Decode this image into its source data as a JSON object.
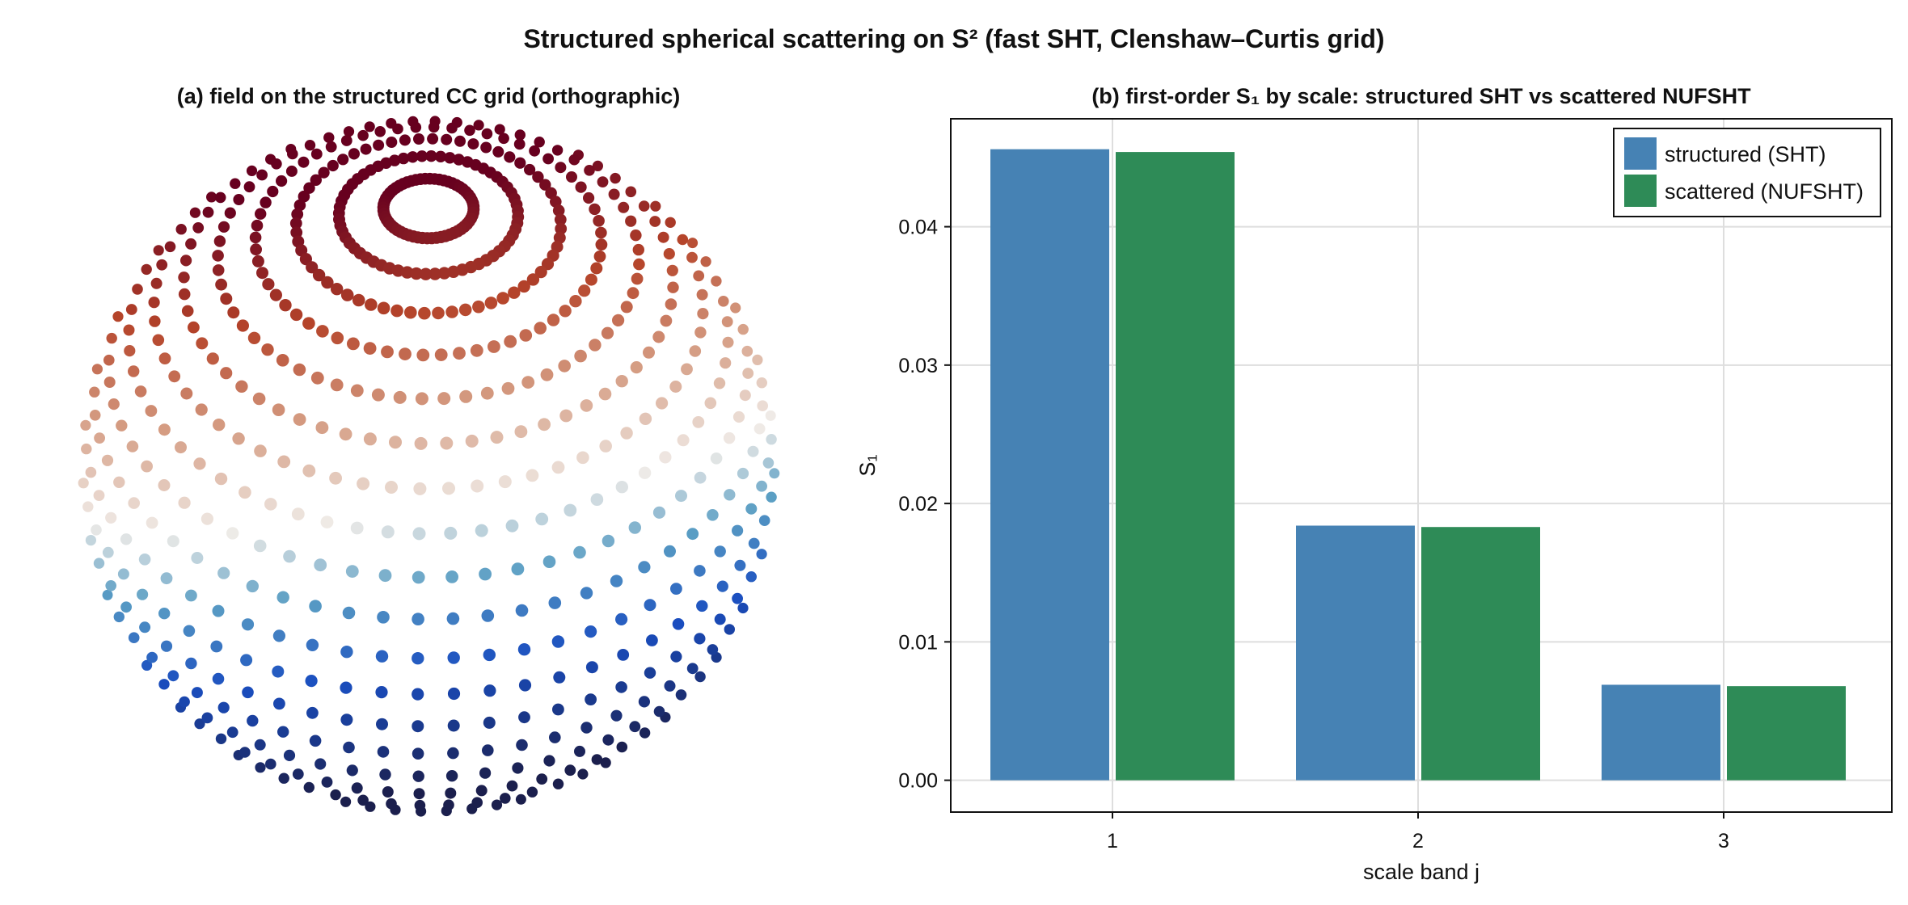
{
  "figure": {
    "title": "Structured spherical scattering on S² (fast SHT, Clenshaw–Curtis grid)"
  },
  "panel_a": {
    "title": "(a) field on the structured CC grid (orthographic)",
    "colors": {
      "high": "#67001f",
      "mid": "#f0ece8",
      "low": "#1b1f4d"
    }
  },
  "chart_data": {
    "type": "bar",
    "title": "(b) first-order S₁ by scale: structured SHT vs scattered NUFSHT",
    "xlabel": "scale band j",
    "ylabel": "S₁",
    "categories": [
      "1",
      "2",
      "3"
    ],
    "series": [
      {
        "name": "structured (SHT)",
        "color": "#4682b4",
        "values": [
          0.0456,
          0.0184,
          0.0069
        ]
      },
      {
        "name": "scattered (NUFSHT)",
        "color": "#2e8b57",
        "values": [
          0.0454,
          0.0183,
          0.0068
        ]
      }
    ],
    "ylim": [
      -0.0023,
      0.0478
    ],
    "yticks": [
      "0.00",
      "0.01",
      "0.02",
      "0.03",
      "0.04"
    ],
    "ytick_values": [
      0,
      0.01,
      0.02,
      0.03,
      0.04
    ],
    "grid": true,
    "legend": "top-right"
  }
}
